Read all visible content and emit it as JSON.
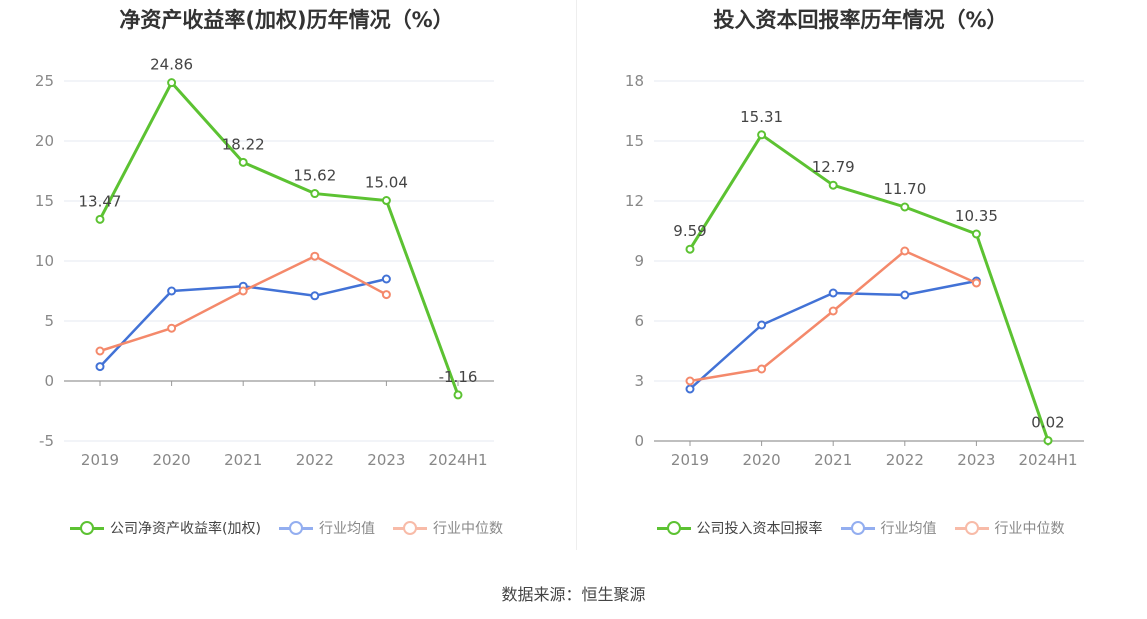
{
  "source": "数据来源：恒生聚源",
  "chart_data": [
    {
      "type": "line",
      "title": "净资产收益率(加权)历年情况（%）",
      "categories": [
        "2019",
        "2020",
        "2021",
        "2022",
        "2023",
        "2024H1"
      ],
      "ylim": [
        -5,
        25
      ],
      "yticks": [
        -5,
        0,
        5,
        10,
        15,
        20,
        25
      ],
      "grid": true,
      "legend_position": "bottom",
      "series": [
        {
          "name": "公司净资产收益率(加权)",
          "color": "#5cc232",
          "values": [
            13.47,
            24.86,
            18.22,
            15.62,
            15.04,
            -1.16
          ],
          "labels": [
            "13.47",
            "24.86",
            "18.22",
            "15.62",
            "15.04",
            "-1.16"
          ]
        },
        {
          "name": "行业均值",
          "color": "#4272d6",
          "values": [
            1.2,
            7.5,
            7.9,
            7.1,
            8.5,
            null
          ]
        },
        {
          "name": "行业中位数",
          "color": "#f4896b",
          "values": [
            2.5,
            4.4,
            7.5,
            10.4,
            7.2,
            null
          ]
        }
      ]
    },
    {
      "type": "line",
      "title": "投入资本回报率历年情况（%）",
      "categories": [
        "2019",
        "2020",
        "2021",
        "2022",
        "2023",
        "2024H1"
      ],
      "ylim": [
        0,
        18
      ],
      "yticks": [
        0,
        3,
        6,
        9,
        12,
        15,
        18
      ],
      "grid": true,
      "legend_position": "bottom",
      "series": [
        {
          "name": "公司投入资本回报率",
          "color": "#5cc232",
          "values": [
            9.59,
            15.31,
            12.79,
            11.7,
            10.35,
            0.02
          ],
          "labels": [
            "9.59",
            "15.31",
            "12.79",
            "11.70",
            "10.35",
            "0.02"
          ]
        },
        {
          "name": "行业均值",
          "color": "#4272d6",
          "values": [
            2.6,
            5.8,
            7.4,
            7.3,
            8.0,
            null
          ]
        },
        {
          "name": "行业中位数",
          "color": "#f4896b",
          "values": [
            3.0,
            3.6,
            6.5,
            9.5,
            7.9,
            null
          ]
        }
      ]
    }
  ]
}
